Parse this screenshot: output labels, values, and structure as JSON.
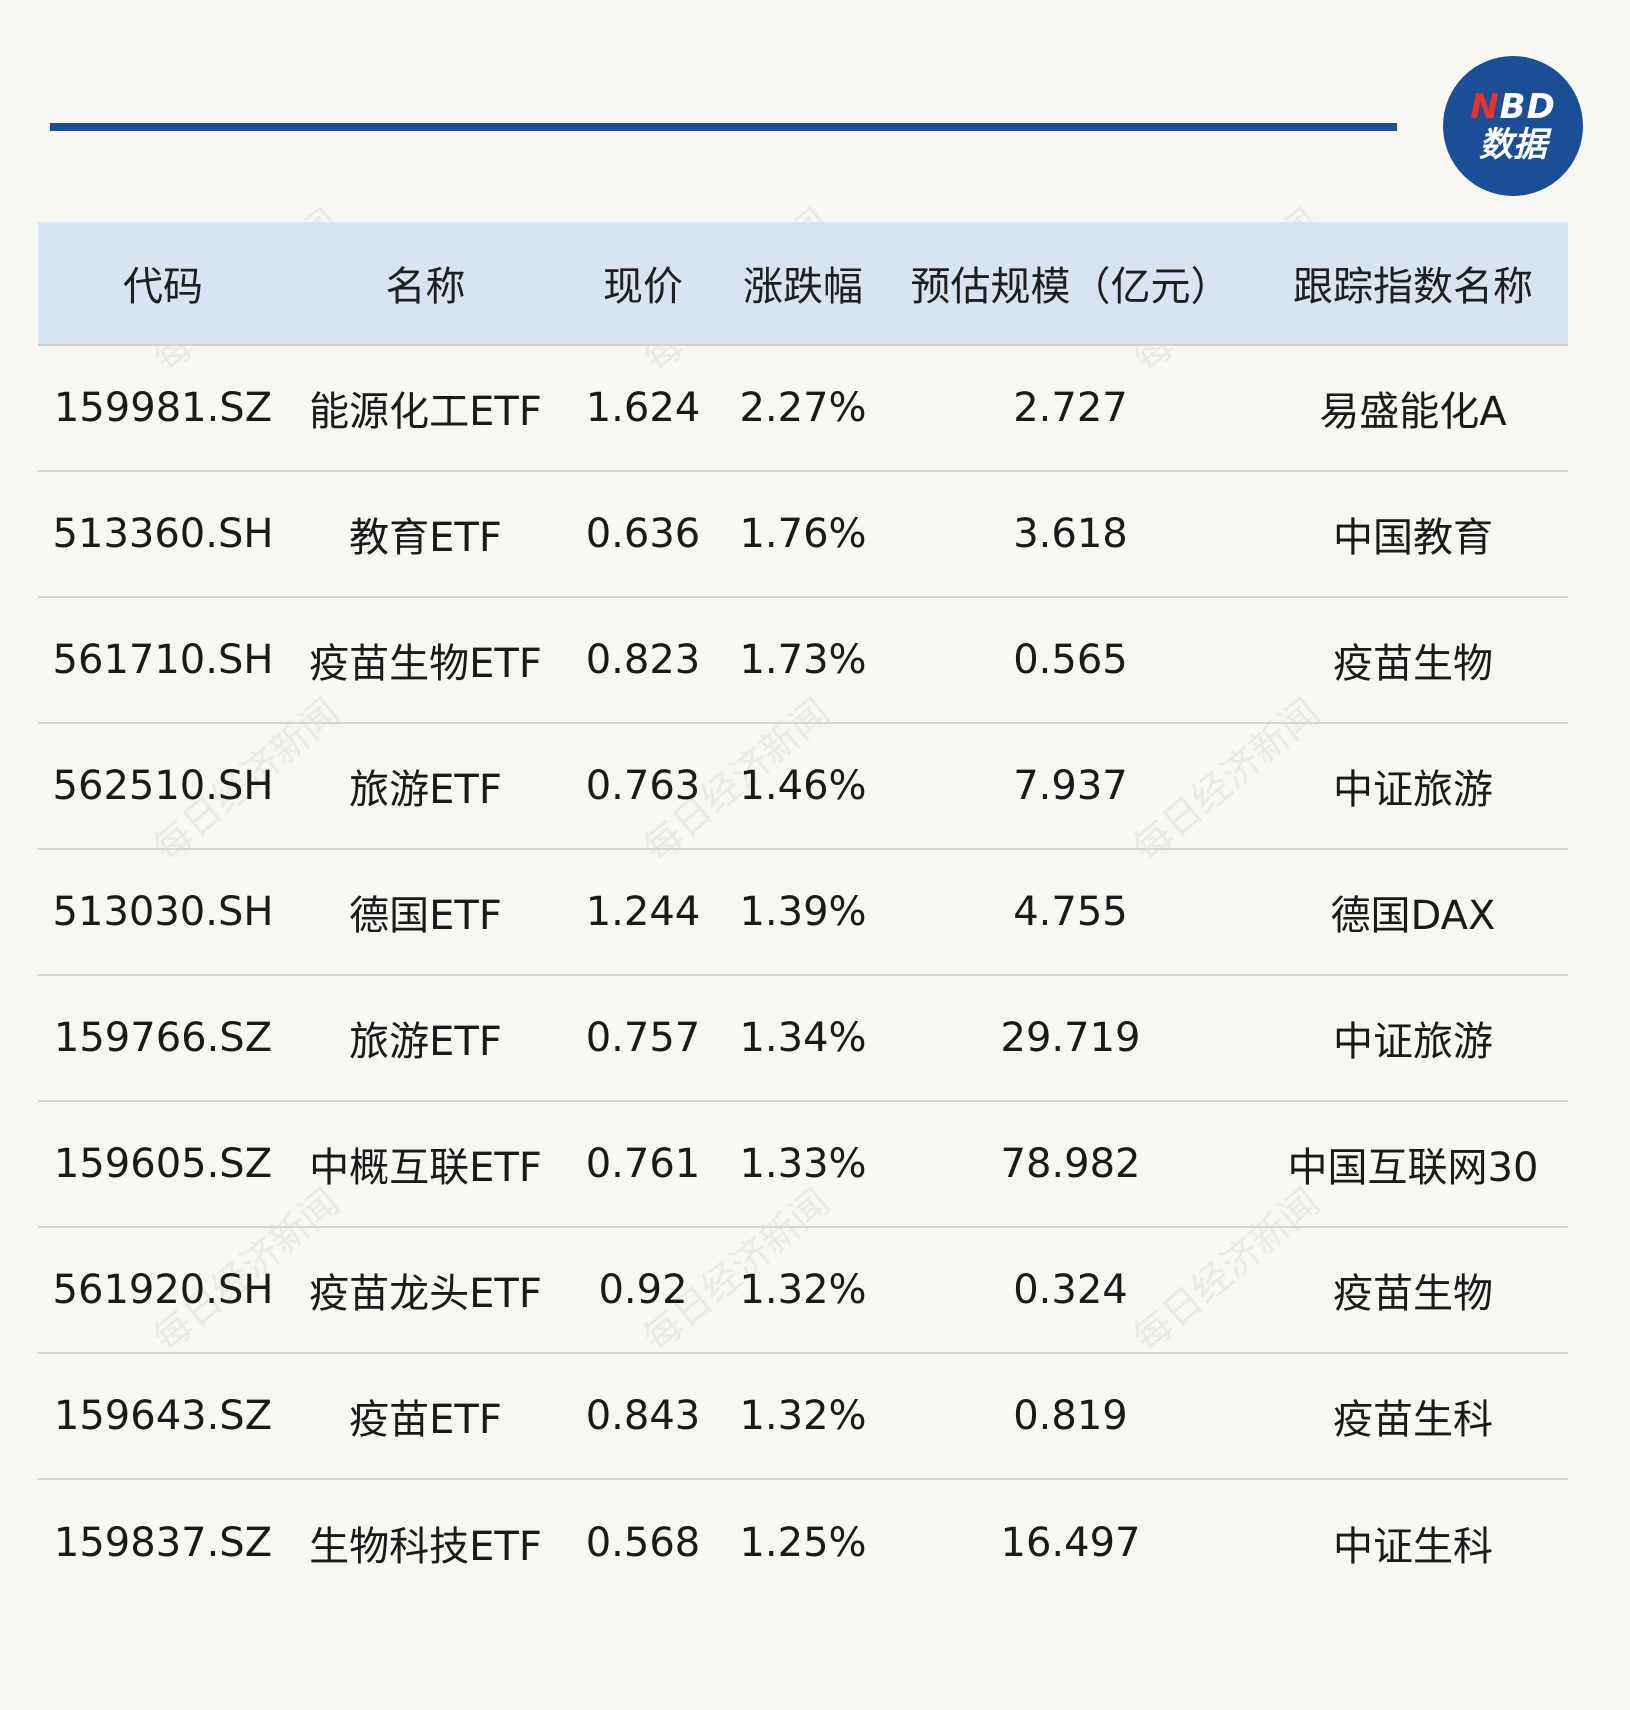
{
  "logo": {
    "accent_letter": "N",
    "letters": "BD",
    "subtitle": "数据",
    "colors": {
      "background": "#1c4e96",
      "accent": "#e8322f"
    }
  },
  "watermark_text": "每日经济新闻",
  "table": {
    "headers": [
      "代码",
      "名称",
      "现价",
      "涨跌幅",
      "预估规模（亿元）",
      "跟踪指数名称"
    ],
    "rows": [
      [
        "159981.SZ",
        "能源化工ETF",
        "1.624",
        "2.27%",
        "2.727",
        "易盛能化A"
      ],
      [
        "513360.SH",
        "教育ETF",
        "0.636",
        "1.76%",
        "3.618",
        "中国教育"
      ],
      [
        "561710.SH",
        "疫苗生物ETF",
        "0.823",
        "1.73%",
        "0.565",
        "疫苗生物"
      ],
      [
        "562510.SH",
        "旅游ETF",
        "0.763",
        "1.46%",
        "7.937",
        "中证旅游"
      ],
      [
        "513030.SH",
        "德国ETF",
        "1.244",
        "1.39%",
        "4.755",
        "德国DAX"
      ],
      [
        "159766.SZ",
        "旅游ETF",
        "0.757",
        "1.34%",
        "29.719",
        "中证旅游"
      ],
      [
        "159605.SZ",
        "中概互联ETF",
        "0.761",
        "1.33%",
        "78.982",
        "中国互联网30"
      ],
      [
        "561920.SH",
        "疫苗龙头ETF",
        "0.92",
        "1.32%",
        "0.324",
        "疫苗生物"
      ],
      [
        "159643.SZ",
        "疫苗ETF",
        "0.843",
        "1.32%",
        "0.819",
        "疫苗生科"
      ],
      [
        "159837.SZ",
        "生物科技ETF",
        "0.568",
        "1.25%",
        "16.497",
        "中证生科"
      ]
    ]
  }
}
